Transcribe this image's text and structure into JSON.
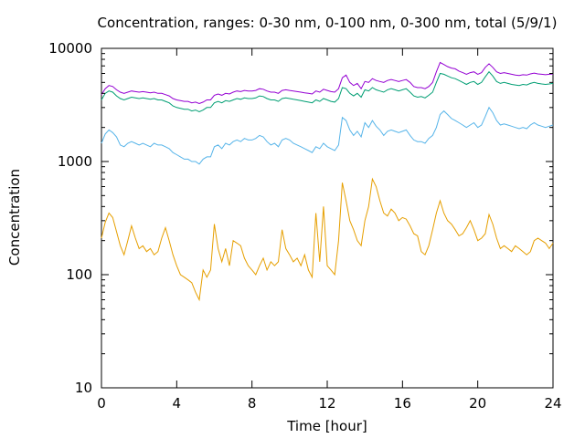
{
  "chart_data": {
    "type": "line",
    "title": "Concentration, ranges: 0-30 nm, 0-100 nm, 0-300 nm, total (5/9/1)",
    "xlabel": "Time [hour]",
    "ylabel": "Concentration",
    "xlim": [
      0,
      24
    ],
    "ylim": [
      10,
      10000
    ],
    "yscale": "log",
    "xticks": [
      0,
      4,
      8,
      12,
      16,
      20,
      24
    ],
    "xtick_labels": [
      "0",
      "4",
      "8",
      "12",
      "16",
      "20",
      "24"
    ],
    "yticks": [
      10,
      100,
      1000,
      10000
    ],
    "ytick_labels": [
      "10",
      "100",
      "1000",
      "10000"
    ],
    "grid": false,
    "legend": "none",
    "series": [
      {
        "color": "#e69f00",
        "x": [
          0,
          0.2,
          0.4,
          0.6,
          0.8,
          1.0,
          1.2,
          1.4,
          1.6,
          1.8,
          2.0,
          2.2,
          2.4,
          2.6,
          2.8,
          3.0,
          3.2,
          3.4,
          3.6,
          3.8,
          4.0,
          4.2,
          4.4,
          4.6,
          4.8,
          5.0,
          5.2,
          5.4,
          5.6,
          5.8,
          6.0,
          6.2,
          6.4,
          6.6,
          6.8,
          7.0,
          7.2,
          7.4,
          7.6,
          7.8,
          8.0,
          8.2,
          8.4,
          8.6,
          8.8,
          9.0,
          9.2,
          9.4,
          9.6,
          9.8,
          10.0,
          10.2,
          10.4,
          10.6,
          10.8,
          11.0,
          11.2,
          11.4,
          11.6,
          11.8,
          12.0,
          12.2,
          12.4,
          12.6,
          12.8,
          13.0,
          13.2,
          13.4,
          13.6,
          13.8,
          14.0,
          14.2,
          14.4,
          14.6,
          14.8,
          15.0,
          15.2,
          15.4,
          15.6,
          15.8,
          16.0,
          16.2,
          16.4,
          16.6,
          16.8,
          17.0,
          17.2,
          17.4,
          17.6,
          17.8,
          18.0,
          18.2,
          18.4,
          18.6,
          18.8,
          19.0,
          19.2,
          19.4,
          19.6,
          19.8,
          20.0,
          20.2,
          20.4,
          20.6,
          20.8,
          21.0,
          21.2,
          21.4,
          21.6,
          21.8,
          22.0,
          22.2,
          22.4,
          22.6,
          22.8,
          23.0,
          23.2,
          23.4,
          23.6,
          23.8,
          24.0
        ],
        "values": [
          210,
          290,
          350,
          320,
          240,
          180,
          150,
          200,
          270,
          210,
          170,
          180,
          160,
          170,
          150,
          160,
          210,
          260,
          200,
          150,
          120,
          100,
          95,
          90,
          85,
          70,
          60,
          110,
          95,
          110,
          280,
          170,
          130,
          170,
          120,
          200,
          190,
          180,
          140,
          120,
          110,
          100,
          120,
          140,
          110,
          130,
          120,
          130,
          250,
          170,
          150,
          130,
          140,
          120,
          150,
          110,
          95,
          350,
          130,
          400,
          120,
          110,
          100,
          200,
          650,
          450,
          300,
          250,
          200,
          180,
          300,
          400,
          700,
          600,
          450,
          350,
          330,
          380,
          350,
          300,
          320,
          310,
          270,
          230,
          220,
          160,
          150,
          180,
          250,
          350,
          450,
          350,
          300,
          280,
          250,
          220,
          230,
          260,
          300,
          250,
          200,
          210,
          230,
          340,
          280,
          210,
          170,
          180,
          170,
          160,
          180,
          170,
          160,
          150,
          160,
          200,
          210,
          200,
          190,
          170,
          190
        ]
      },
      {
        "color": "#56b4e9",
        "x": [
          0,
          0.2,
          0.4,
          0.6,
          0.8,
          1.0,
          1.2,
          1.4,
          1.6,
          1.8,
          2.0,
          2.2,
          2.4,
          2.6,
          2.8,
          3.0,
          3.2,
          3.4,
          3.6,
          3.8,
          4.0,
          4.2,
          4.4,
          4.6,
          4.8,
          5.0,
          5.2,
          5.4,
          5.6,
          5.8,
          6.0,
          6.2,
          6.4,
          6.6,
          6.8,
          7.0,
          7.2,
          7.4,
          7.6,
          7.8,
          8.0,
          8.2,
          8.4,
          8.6,
          8.8,
          9.0,
          9.2,
          9.4,
          9.6,
          9.8,
          10.0,
          10.2,
          10.4,
          10.6,
          10.8,
          11.0,
          11.2,
          11.4,
          11.6,
          11.8,
          12.0,
          12.2,
          12.4,
          12.6,
          12.8,
          13.0,
          13.2,
          13.4,
          13.6,
          13.8,
          14.0,
          14.2,
          14.4,
          14.6,
          14.8,
          15.0,
          15.2,
          15.4,
          15.6,
          15.8,
          16.0,
          16.2,
          16.4,
          16.6,
          16.8,
          17.0,
          17.2,
          17.4,
          17.6,
          17.8,
          18.0,
          18.2,
          18.4,
          18.6,
          18.8,
          19.0,
          19.2,
          19.4,
          19.6,
          19.8,
          20.0,
          20.2,
          20.4,
          20.6,
          20.8,
          21.0,
          21.2,
          21.4,
          21.6,
          21.8,
          22.0,
          22.2,
          22.4,
          22.6,
          22.8,
          23.0,
          23.2,
          23.4,
          23.6,
          23.8,
          24.0
        ],
        "values": [
          1450,
          1750,
          1900,
          1800,
          1650,
          1400,
          1350,
          1450,
          1500,
          1450,
          1400,
          1450,
          1400,
          1350,
          1450,
          1400,
          1400,
          1350,
          1300,
          1200,
          1150,
          1100,
          1050,
          1050,
          1000,
          1000,
          950,
          1050,
          1100,
          1100,
          1350,
          1400,
          1300,
          1450,
          1400,
          1500,
          1550,
          1500,
          1600,
          1550,
          1550,
          1600,
          1700,
          1650,
          1500,
          1400,
          1450,
          1350,
          1550,
          1600,
          1550,
          1450,
          1400,
          1350,
          1300,
          1250,
          1200,
          1350,
          1300,
          1450,
          1350,
          1300,
          1250,
          1400,
          2450,
          2300,
          1900,
          1700,
          1850,
          1650,
          2200,
          2000,
          2300,
          2050,
          1900,
          1700,
          1850,
          1900,
          1850,
          1800,
          1850,
          1900,
          1700,
          1550,
          1500,
          1500,
          1450,
          1600,
          1700,
          2000,
          2600,
          2800,
          2600,
          2400,
          2300,
          2200,
          2100,
          2000,
          2100,
          2200,
          2000,
          2100,
          2500,
          3000,
          2700,
          2300,
          2100,
          2150,
          2100,
          2050,
          2000,
          1950,
          2000,
          1950,
          2100,
          2200,
          2100,
          2050,
          2000,
          2050,
          2100
        ]
      },
      {
        "color": "#009e73",
        "x": [
          0,
          0.2,
          0.4,
          0.6,
          0.8,
          1.0,
          1.2,
          1.4,
          1.6,
          1.8,
          2.0,
          2.2,
          2.4,
          2.6,
          2.8,
          3.0,
          3.2,
          3.4,
          3.6,
          3.8,
          4.0,
          4.2,
          4.4,
          4.6,
          4.8,
          5.0,
          5.2,
          5.4,
          5.6,
          5.8,
          6.0,
          6.2,
          6.4,
          6.6,
          6.8,
          7.0,
          7.2,
          7.4,
          7.6,
          7.8,
          8.0,
          8.2,
          8.4,
          8.6,
          8.8,
          9.0,
          9.2,
          9.4,
          9.6,
          9.8,
          10.0,
          10.2,
          10.4,
          10.6,
          10.8,
          11.0,
          11.2,
          11.4,
          11.6,
          11.8,
          12.0,
          12.2,
          12.4,
          12.6,
          12.8,
          13.0,
          13.2,
          13.4,
          13.6,
          13.8,
          14.0,
          14.2,
          14.4,
          14.6,
          14.8,
          15.0,
          15.2,
          15.4,
          15.6,
          15.8,
          16.0,
          16.2,
          16.4,
          16.6,
          16.8,
          17.0,
          17.2,
          17.4,
          17.6,
          17.8,
          18.0,
          18.2,
          18.4,
          18.6,
          18.8,
          19.0,
          19.2,
          19.4,
          19.6,
          19.8,
          20.0,
          20.2,
          20.4,
          20.6,
          20.8,
          21.0,
          21.2,
          21.4,
          21.6,
          21.8,
          22.0,
          22.2,
          22.4,
          22.6,
          22.8,
          23.0,
          23.2,
          23.4,
          23.6,
          23.8,
          24.0
        ],
        "values": [
          3500,
          4000,
          4200,
          4100,
          3800,
          3600,
          3500,
          3600,
          3700,
          3650,
          3600,
          3650,
          3600,
          3550,
          3600,
          3500,
          3500,
          3400,
          3300,
          3100,
          3000,
          2950,
          2900,
          2900,
          2800,
          2850,
          2750,
          2850,
          3000,
          3000,
          3300,
          3400,
          3300,
          3450,
          3400,
          3500,
          3600,
          3550,
          3650,
          3600,
          3600,
          3650,
          3800,
          3750,
          3600,
          3500,
          3500,
          3400,
          3600,
          3650,
          3600,
          3550,
          3500,
          3450,
          3400,
          3350,
          3300,
          3500,
          3400,
          3600,
          3500,
          3400,
          3350,
          3600,
          4500,
          4400,
          4000,
          3800,
          4000,
          3700,
          4300,
          4200,
          4500,
          4300,
          4200,
          4100,
          4300,
          4400,
          4300,
          4200,
          4300,
          4400,
          4100,
          3800,
          3700,
          3750,
          3650,
          3850,
          4100,
          5000,
          6000,
          5900,
          5700,
          5500,
          5400,
          5200,
          5000,
          4800,
          5000,
          5100,
          4800,
          5000,
          5600,
          6200,
          5700,
          5100,
          4900,
          5000,
          4900,
          4800,
          4750,
          4700,
          4800,
          4750,
          4900,
          5000,
          4900,
          4850,
          4800,
          4850,
          4900
        ]
      },
      {
        "color": "#9400d3",
        "x": [
          0,
          0.2,
          0.4,
          0.6,
          0.8,
          1.0,
          1.2,
          1.4,
          1.6,
          1.8,
          2.0,
          2.2,
          2.4,
          2.6,
          2.8,
          3.0,
          3.2,
          3.4,
          3.6,
          3.8,
          4.0,
          4.2,
          4.4,
          4.6,
          4.8,
          5.0,
          5.2,
          5.4,
          5.6,
          5.8,
          6.0,
          6.2,
          6.4,
          6.6,
          6.8,
          7.0,
          7.2,
          7.4,
          7.6,
          7.8,
          8.0,
          8.2,
          8.4,
          8.6,
          8.8,
          9.0,
          9.2,
          9.4,
          9.6,
          9.8,
          10.0,
          10.2,
          10.4,
          10.6,
          10.8,
          11.0,
          11.2,
          11.4,
          11.6,
          11.8,
          12.0,
          12.2,
          12.4,
          12.6,
          12.8,
          13.0,
          13.2,
          13.4,
          13.6,
          13.8,
          14.0,
          14.2,
          14.4,
          14.6,
          14.8,
          15.0,
          15.2,
          15.4,
          15.6,
          15.8,
          16.0,
          16.2,
          16.4,
          16.6,
          16.8,
          17.0,
          17.2,
          17.4,
          17.6,
          17.8,
          18.0,
          18.2,
          18.4,
          18.6,
          18.8,
          19.0,
          19.2,
          19.4,
          19.6,
          19.8,
          20.0,
          20.2,
          20.4,
          20.6,
          20.8,
          21.0,
          21.2,
          21.4,
          21.6,
          21.8,
          22.0,
          22.2,
          22.4,
          22.6,
          22.8,
          23.0,
          23.2,
          23.4,
          23.6,
          23.8,
          24.0
        ],
        "values": [
          3900,
          4400,
          4700,
          4600,
          4300,
          4100,
          4000,
          4100,
          4200,
          4150,
          4100,
          4150,
          4100,
          4050,
          4100,
          4000,
          4000,
          3900,
          3800,
          3600,
          3500,
          3450,
          3400,
          3400,
          3300,
          3350,
          3250,
          3350,
          3500,
          3500,
          3850,
          3950,
          3850,
          4000,
          3950,
          4100,
          4200,
          4150,
          4250,
          4200,
          4200,
          4250,
          4400,
          4350,
          4200,
          4100,
          4100,
          4000,
          4250,
          4300,
          4250,
          4200,
          4150,
          4100,
          4050,
          4000,
          3950,
          4200,
          4100,
          4350,
          4250,
          4150,
          4100,
          4400,
          5500,
          5800,
          5000,
          4700,
          4900,
          4400,
          5100,
          5000,
          5400,
          5200,
          5100,
          5000,
          5200,
          5300,
          5200,
          5100,
          5200,
          5300,
          5000,
          4600,
          4500,
          4500,
          4400,
          4600,
          5000,
          6200,
          7500,
          7200,
          6900,
          6700,
          6600,
          6300,
          6100,
          5900,
          6100,
          6200,
          5900,
          6100,
          6800,
          7300,
          6800,
          6200,
          6000,
          6100,
          6000,
          5900,
          5800,
          5750,
          5850,
          5800,
          5950,
          6050,
          5950,
          5900,
          5850,
          5900,
          5950
        ]
      }
    ]
  }
}
